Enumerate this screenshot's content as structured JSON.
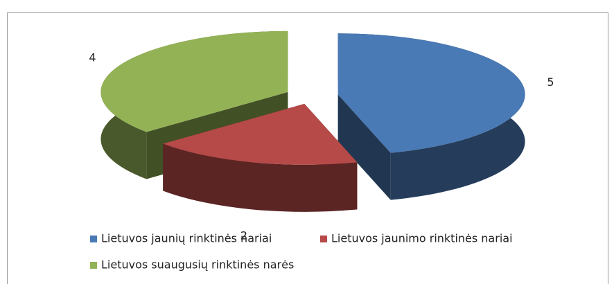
{
  "chart_data": {
    "type": "pie",
    "three_d": true,
    "exploded": true,
    "categories": [
      "Lietuvos jaunių rinktinės nariai",
      "Lietuvos jaunimo rinktinės nariai",
      "Lietuvos suaugusių rinktinės narės"
    ],
    "values": [
      5,
      2,
      4
    ],
    "colors": [
      "#4a7ab5",
      "#b54a48",
      "#93b255"
    ],
    "legend": "bottom"
  }
}
